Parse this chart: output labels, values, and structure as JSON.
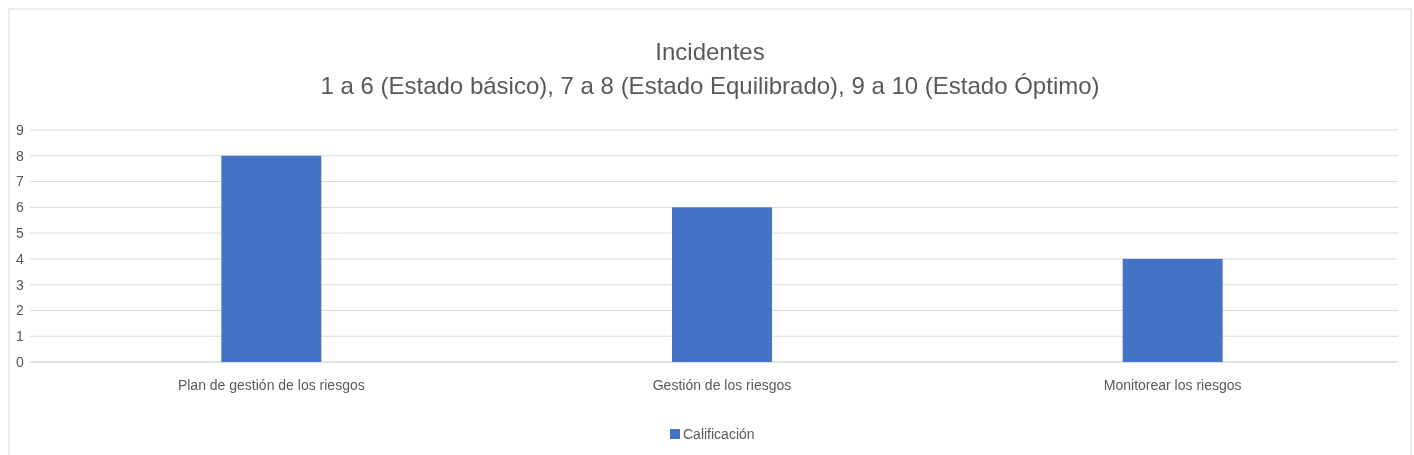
{
  "chart_data": {
    "type": "bar",
    "title": "Incidentes",
    "subtitle": "1 a 6 (Estado básico), 7 a 8 (Estado Equilibrado), 9 a 10 (Estado Óptimo)",
    "categories": [
      "Plan de gestión de los riesgos",
      "Gestión de los riesgos",
      "Monitorear los riesgos"
    ],
    "series": [
      {
        "name": "Calificación",
        "color": "#4472c4",
        "values": [
          8,
          6,
          4
        ]
      }
    ],
    "ylim": [
      0,
      9
    ],
    "yticks": [
      0,
      1,
      2,
      3,
      4,
      5,
      6,
      7,
      8,
      9
    ],
    "grid": "y",
    "legend": "bottom"
  }
}
